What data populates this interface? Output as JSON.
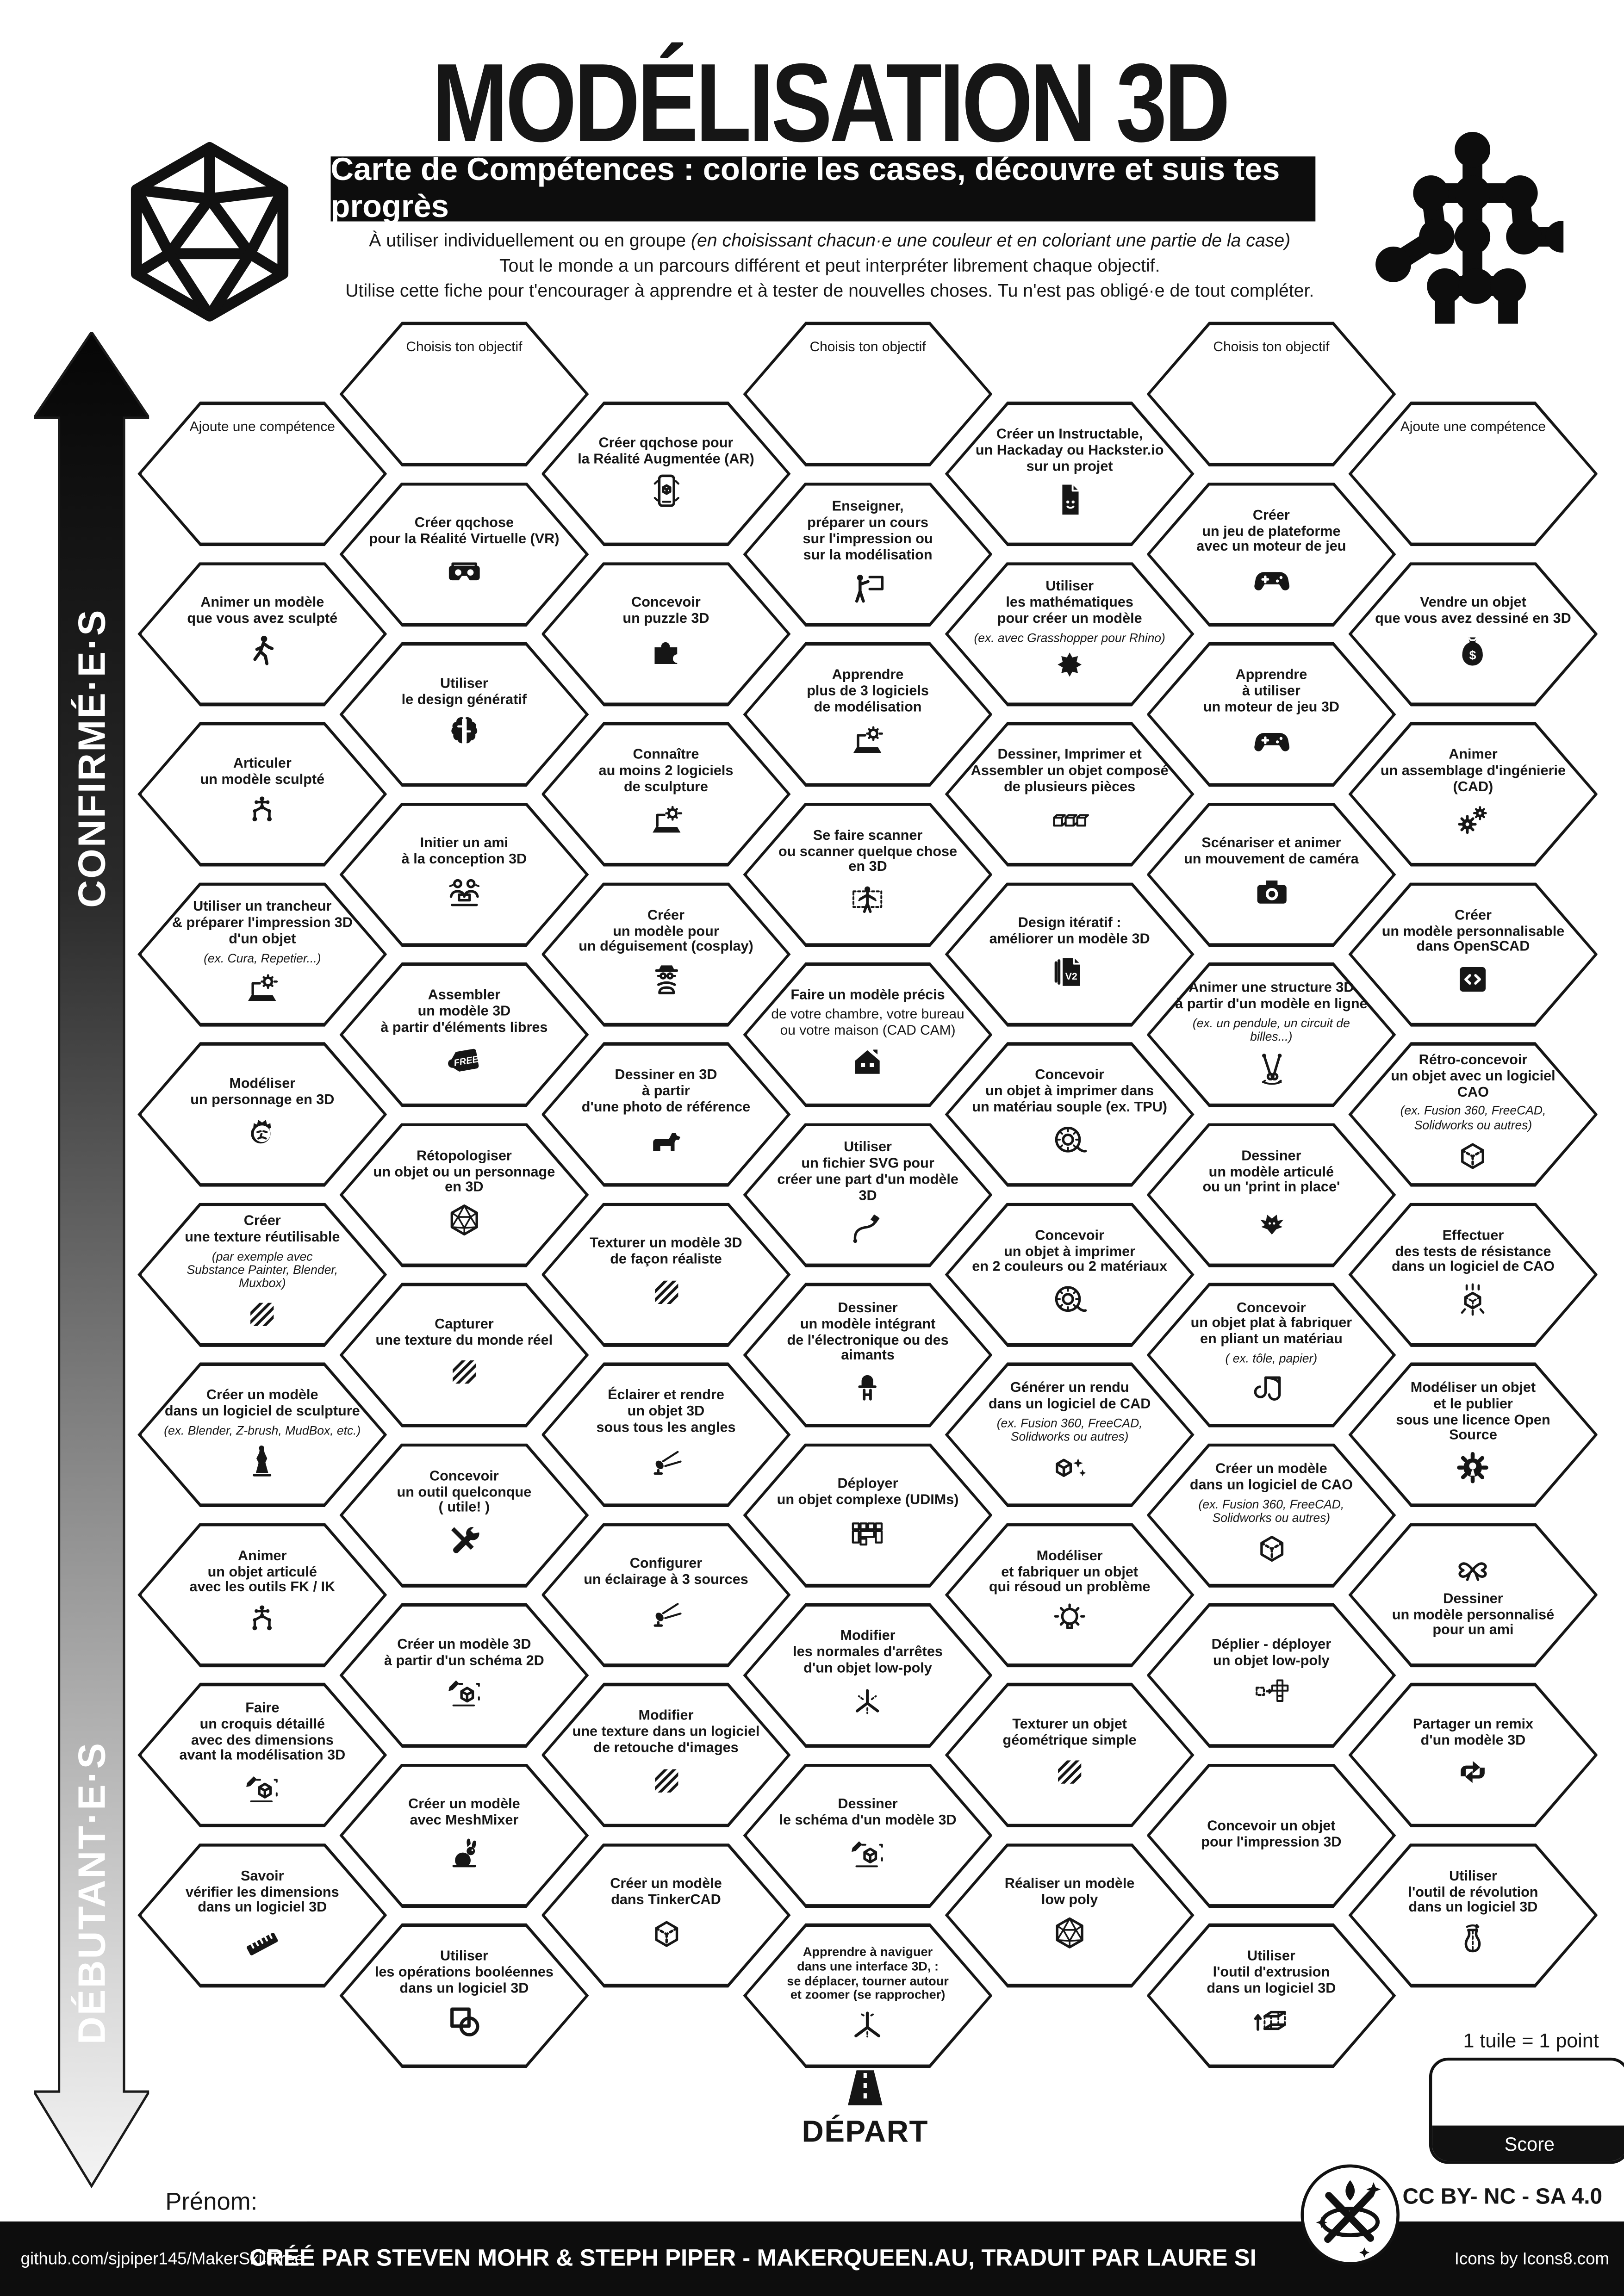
{
  "header": {
    "title": "MODÉLISATION 3D",
    "subtitle": "Carte de Compétences : colorie les cases, découvre et suis tes progrès",
    "intro1": "À utiliser individuellement ou en groupe ",
    "intro1_italic": "(en choisissant chacun·e une couleur et en coloriant une partie de la case)",
    "intro2": "Tout le monde a un parcours différent et peut interpréter librement chaque objectif.",
    "intro3": "Utilise cette fiche pour t'encourager à apprendre et à tester de nouvelles choses. Tu n'est pas obligé·e de tout compléter."
  },
  "levels": {
    "advanced": "CONFIRMÉ·E·S",
    "beginner": "DÉBUTANT·E·S"
  },
  "start": {
    "label": "DÉPART",
    "name_label": "Prénom:"
  },
  "score": {
    "note": "1 tuile = 1 point",
    "label": "Score"
  },
  "license": {
    "cc": "CC BY- NC - SA 4.0"
  },
  "footer": {
    "repo": "github.com/sjpiper145/MakerSkillTree",
    "credit": "CRÉÉ PAR STEVEN MOHR & STEPH PIPER - MAKERQUEEN.AU, TRADUIT PAR LAURE SI",
    "icons": "Icons by Icons8.com"
  },
  "hexes": [
    {
      "c": 1,
      "r": 0,
      "t": "Ajoute une compétence",
      "f": "plain"
    },
    {
      "c": 1,
      "r": 1,
      "t": "Animer un modèle\nque vous avez sculpté",
      "i": "walking-person"
    },
    {
      "c": 1,
      "r": 2,
      "t": "Articuler\nun modèle sculpté",
      "i": "rig"
    },
    {
      "c": 1,
      "r": 3,
      "t": "Utiliser un trancheur\n& préparer l'impression 3D\nd'un objet",
      "n": "(ex. Cura, Repetier...)",
      "i": "slicer-laptop"
    },
    {
      "c": 1,
      "r": 4,
      "t": "Modéliser\nun personnage en 3D",
      "i": "face"
    },
    {
      "c": 1,
      "r": 5,
      "t": "Créer\nune texture réutilisable",
      "n": "(par exemple avec\nSubstance Painter, Blender, Muxbox)",
      "i": "texture-stripes"
    },
    {
      "c": 1,
      "r": 6,
      "t": "Créer un modèle\ndans un logiciel de sculpture",
      "n": "(ex. Blender, Z-brush, MudBox, etc.)",
      "i": "statue"
    },
    {
      "c": 1,
      "r": 7,
      "t": "Animer\nun objet articulé\navec les outils FK / IK",
      "i": "rig"
    },
    {
      "c": 1,
      "r": 8,
      "t": "Faire\nun croquis détaillé\navec des dimensions\navant la modélisation 3D",
      "i": "sketch-cube"
    },
    {
      "c": 1,
      "r": 9,
      "t": "Savoir\nvérifier les dimensions\ndans un logiciel 3D",
      "i": "ruler"
    },
    {
      "c": 2,
      "r": 0,
      "t": "Choisis ton objectif",
      "f": "plain"
    },
    {
      "c": 2,
      "r": 1,
      "t": "Créer qqchose\npour la Réalité Virtuelle (VR)",
      "i": "vr-goggles"
    },
    {
      "c": 2,
      "r": 2,
      "t": "Utiliser\nle design génératif",
      "i": "brain"
    },
    {
      "c": 2,
      "r": 3,
      "t": "Initier un ami\nà la conception 3D",
      "i": "people-pair"
    },
    {
      "c": 2,
      "r": 4,
      "t": "Assembler\nun modèle 3D\nà partir d'éléments libres",
      "i": "free-tag"
    },
    {
      "c": 2,
      "r": 5,
      "t": "Rétopologiser\nun objet ou un personnage\nen 3D",
      "i": "wireframe-sphere"
    },
    {
      "c": 2,
      "r": 6,
      "t": "Capturer\nune texture du monde réel",
      "i": "texture-stripes"
    },
    {
      "c": 2,
      "r": 7,
      "t": "Concevoir\nun outil quelconque\n( utile! )",
      "i": "tools"
    },
    {
      "c": 2,
      "r": 8,
      "t": "Créer un modèle 3D\nà partir d'un schéma 2D",
      "i": "sketch-cube"
    },
    {
      "c": 2,
      "r": 9,
      "t": "Créer un modèle\navec MeshMixer",
      "i": "rabbit"
    },
    {
      "c": 2,
      "r": 10,
      "t": "Utiliser\nles opérations booléennes\ndans un logiciel 3D",
      "i": "boolean"
    },
    {
      "c": 3,
      "r": 0,
      "t": "Créer qqchose pour\nla Réalité Augmentée (AR)",
      "i": "ar-phone"
    },
    {
      "c": 3,
      "r": 1,
      "t": "Concevoir\nun puzzle 3D",
      "i": "puzzle"
    },
    {
      "c": 3,
      "r": 2,
      "t": "Connaître\nau moins 2 logiciels\nde sculpture",
      "i": "slicer-laptop"
    },
    {
      "c": 3,
      "r": 3,
      "t": "Créer\nun modèle pour\nun déguisement (cosplay)",
      "i": "cosplay"
    },
    {
      "c": 3,
      "r": 4,
      "t": "Dessiner en 3D\nà partir\nd'une photo de référence",
      "i": "dog"
    },
    {
      "c": 3,
      "r": 5,
      "t": "Texturer un modèle 3D\nde façon réaliste",
      "i": "texture-stripes"
    },
    {
      "c": 3,
      "r": 6,
      "t": "Éclairer et rendre\nun objet 3D\nsous tous les angles",
      "i": "spotlight"
    },
    {
      "c": 3,
      "r": 7,
      "t": "Configurer\nun éclairage à 3 sources",
      "i": "spotlight"
    },
    {
      "c": 3,
      "r": 8,
      "t": "Modifier\nune texture dans un logiciel\nde retouche d'images",
      "i": "texture-stripes"
    },
    {
      "c": 3,
      "r": 9,
      "t": "Créer un modèle\ndans TinkerCAD",
      "i": "cad-cube"
    },
    {
      "c": 4,
      "r": 0,
      "t": "Choisis ton objectif",
      "f": "plain"
    },
    {
      "c": 4,
      "r": 1,
      "t": "Enseigner,\npréparer un cours\nsur l'impression ou\nsur la modélisation",
      "i": "teacher"
    },
    {
      "c": 4,
      "r": 2,
      "t": "Apprendre\nplus de 3 logiciels\nde modélisation",
      "i": "slicer-laptop"
    },
    {
      "c": 4,
      "r": 3,
      "t": "Se faire scanner\nou scanner quelque chose\nen 3D",
      "i": "body-scan"
    },
    {
      "c": 4,
      "r": 4,
      "t": "Faire un modèle précis",
      "n": "de votre chambre, votre bureau\nou votre maison (CAD CAM)",
      "nf": "reg",
      "i": "house"
    },
    {
      "c": 4,
      "r": 5,
      "t": "Utiliser\nun fichier SVG pour\ncréer une part d'un modèle 3D",
      "i": "pen-path"
    },
    {
      "c": 4,
      "r": 6,
      "t": "Dessiner\nun modèle intégrant\nde l'électronique ou des aimants",
      "i": "led"
    },
    {
      "c": 4,
      "r": 7,
      "t": "Déployer\nun objet complexe (UDIMs)",
      "i": "udim"
    },
    {
      "c": 4,
      "r": 8,
      "t": "Modifier\nles normales d'arrêtes\nd'un objet low-poly",
      "i": "normals"
    },
    {
      "c": 4,
      "r": 9,
      "t": "Dessiner\nle schéma d'un modèle 3D",
      "i": "sketch-cube"
    },
    {
      "c": 4,
      "r": 10,
      "t": "Apprendre à naviguer\ndans une interface 3D, :\nse déplacer, tourner autour\net zoomer (se rapprocher)",
      "f": "small",
      "i": "axes-3d"
    },
    {
      "c": 5,
      "r": 0,
      "t": "Créer un Instructable,\nun Hackaday ou Hackster.io\nsur un projet",
      "i": "doc-smile"
    },
    {
      "c": 5,
      "r": 1,
      "t": "Utiliser\nles mathématiques\npour créer un modèle",
      "n": "(ex. avec Grasshopper pour Rhino)",
      "i": "fractal"
    },
    {
      "c": 5,
      "r": 2,
      "t": "Dessiner, Imprimer et\nAssembler un objet composé\nde plusieurs pièces",
      "i": "cubes-3"
    },
    {
      "c": 5,
      "r": 3,
      "t": "Design itératif :\naméliorer un modèle 3D",
      "i": "v2-doc"
    },
    {
      "c": 5,
      "r": 4,
      "t": "Concevoir\nun objet à imprimer dans\nun matériau souple (ex. TPU)",
      "i": "spool"
    },
    {
      "c": 5,
      "r": 5,
      "t": "Concevoir\nun objet à imprimer\nen 2 couleurs ou 2 matériaux",
      "i": "spool"
    },
    {
      "c": 5,
      "r": 6,
      "t": "Générer un rendu\ndans un logiciel de CAD",
      "n": "(ex. Fusion 360, FreeCAD,\nSolidworks ou autres)",
      "i": "sparkle-cube"
    },
    {
      "c": 5,
      "r": 7,
      "t": "Modéliser\net fabriquer un objet\nqui résoud un problème",
      "i": "bulb"
    },
    {
      "c": 5,
      "r": 8,
      "t": "Texturer un objet\ngéométrique simple",
      "i": "texture-stripes"
    },
    {
      "c": 5,
      "r": 9,
      "t": "Réaliser un modèle\nlow poly",
      "i": "wireframe-sphere"
    },
    {
      "c": 6,
      "r": 0,
      "t": "Choisis ton objectif",
      "f": "plain"
    },
    {
      "c": 6,
      "r": 1,
      "t": "Créer\nun jeu de plateforme\navec un moteur de jeu",
      "i": "gamepad"
    },
    {
      "c": 6,
      "r": 2,
      "t": "Apprendre\nà utiliser\nun moteur de jeu 3D",
      "i": "gamepad"
    },
    {
      "c": 6,
      "r": 3,
      "t": "Scénariser et animer\nun mouvement de caméra",
      "i": "camera"
    },
    {
      "c": 6,
      "r": 4,
      "t": "Animer une structure 3D\nà partir d'un modèle en ligne",
      "n": "(ex. un pendule, un circuit de billes...)",
      "i": "pendulum"
    },
    {
      "c": 6,
      "r": 5,
      "t": "Dessiner\nun modèle articulé\nou un 'print in place'",
      "i": "dragon"
    },
    {
      "c": 6,
      "r": 6,
      "t": "Concevoir\nun objet plat à fabriquer\nen pliant un matériau",
      "n": "( ex. tôle, papier)",
      "i": "fold-sheet"
    },
    {
      "c": 6,
      "r": 7,
      "t": "Créer un modèle\ndans un logiciel de CAO",
      "n": "(ex. Fusion 360, FreeCAD,\nSolidworks ou autres)",
      "i": "cad-cube"
    },
    {
      "c": 6,
      "r": 8,
      "t": "Déplier - déployer\nun objet low-poly",
      "i": "unfold"
    },
    {
      "c": 6,
      "r": 9,
      "t": "Concevoir un objet\npour l'impression 3D"
    },
    {
      "c": 6,
      "r": 10,
      "t": "Utiliser\nl'outil d'extrusion\ndans un logiciel 3D",
      "i": "extrude"
    },
    {
      "c": 7,
      "r": 0,
      "t": "Ajoute une compétence",
      "f": "plain"
    },
    {
      "c": 7,
      "r": 1,
      "t": "Vendre un objet\nque vous avez dessiné en 3D",
      "i": "money-bag"
    },
    {
      "c": 7,
      "r": 2,
      "t": "Animer\nun assemblage d'ingénierie\n(CAD)",
      "i": "gears"
    },
    {
      "c": 7,
      "r": 3,
      "t": "Créer\nun modèle personnalisable\ndans OpenSCAD",
      "i": "code-window"
    },
    {
      "c": 7,
      "r": 4,
      "t": "Rétro-concevoir\nun objet avec un logiciel CAO",
      "n": "(ex. Fusion 360, FreeCAD,\nSolidworks ou autres)",
      "i": "cad-cube"
    },
    {
      "c": 7,
      "r": 5,
      "t": "Effectuer\ndes tests de résistance\ndans un logiciel de CAO",
      "i": "stress-test"
    },
    {
      "c": 7,
      "r": 6,
      "t": "Modéliser un objet\net le publier\nsous une licence Open Source",
      "i": "open-source-gear"
    },
    {
      "c": 7,
      "r": 7,
      "t": "Dessiner\nun modèle personnalisé\npour un ami",
      "i": "gift-bow",
      "f": "icontop"
    },
    {
      "c": 7,
      "r": 8,
      "t": "Partager un remix\nd'un modèle 3D",
      "i": "remix-arrows"
    },
    {
      "c": 7,
      "r": 9,
      "t": "Utiliser\nl'outil de révolution\ndans un logiciel 3D",
      "i": "vase"
    }
  ]
}
